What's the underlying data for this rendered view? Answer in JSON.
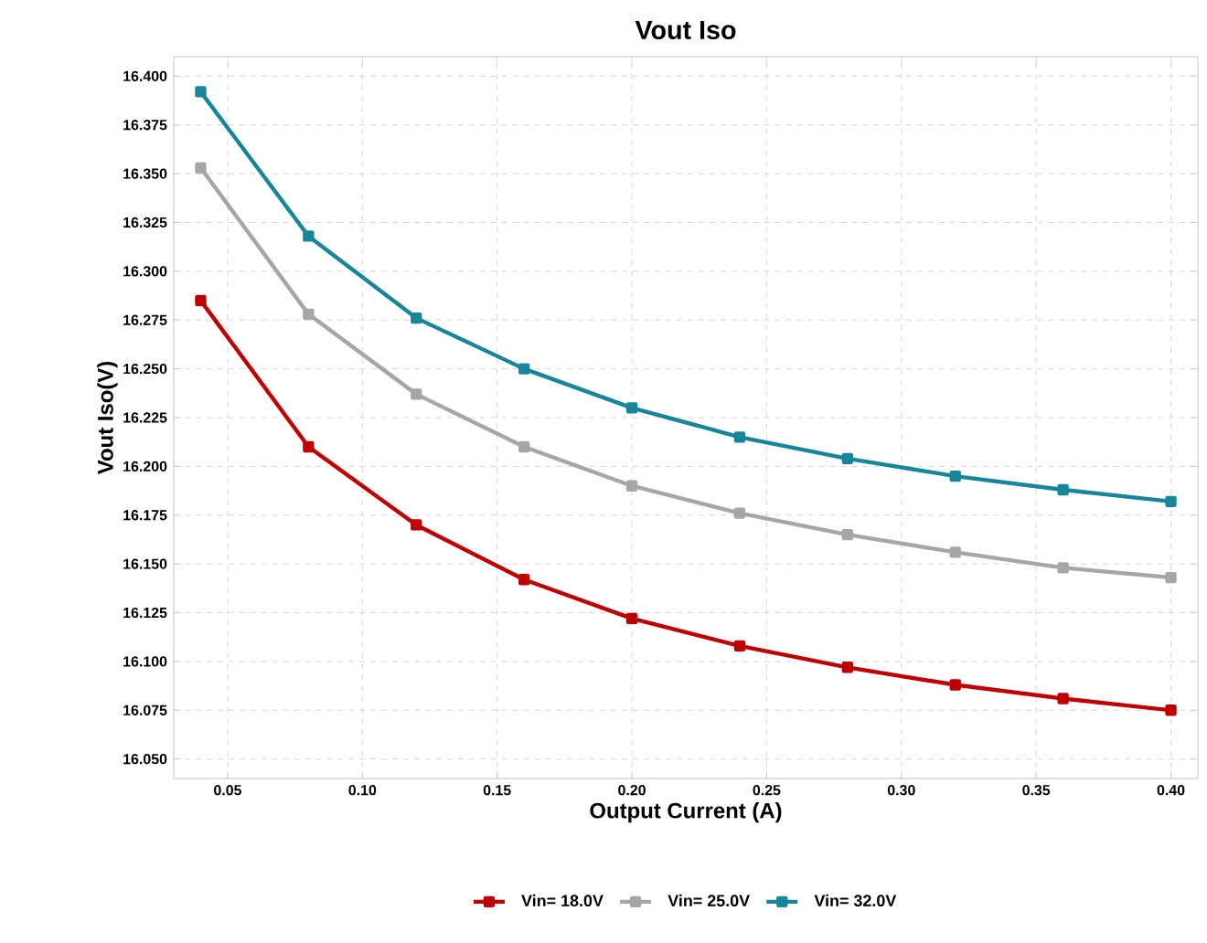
{
  "chart_data": {
    "type": "line",
    "title": "Vout Iso",
    "xlabel": "Output Current (A)",
    "ylabel": "Vout Iso(V)",
    "x": [
      0.04,
      0.08,
      0.12,
      0.16,
      0.2,
      0.24,
      0.28,
      0.32,
      0.36,
      0.4
    ],
    "series": [
      {
        "name": "Vin= 18.0V",
        "color": "#c00000",
        "values": [
          16.285,
          16.21,
          16.17,
          16.142,
          16.122,
          16.108,
          16.097,
          16.088,
          16.081,
          16.075
        ]
      },
      {
        "name": "Vin= 25.0V",
        "color": "#a6a6a6",
        "values": [
          16.353,
          16.278,
          16.237,
          16.21,
          16.19,
          16.176,
          16.165,
          16.156,
          16.148,
          16.143
        ]
      },
      {
        "name": "Vin= 32.0V",
        "color": "#17869a",
        "values": [
          16.392,
          16.318,
          16.276,
          16.25,
          16.23,
          16.215,
          16.204,
          16.195,
          16.188,
          16.182
        ]
      }
    ],
    "xlim": [
      0.03,
      0.41
    ],
    "ylim": [
      16.04,
      16.41
    ],
    "xticks": [
      {
        "value": 0.05,
        "label": "0.05"
      },
      {
        "value": 0.1,
        "label": "0.10"
      },
      {
        "value": 0.15,
        "label": "0.15"
      },
      {
        "value": 0.2,
        "label": "0.20"
      },
      {
        "value": 0.25,
        "label": "0.25"
      },
      {
        "value": 0.3,
        "label": "0.30"
      },
      {
        "value": 0.35,
        "label": "0.35"
      },
      {
        "value": 0.4,
        "label": "0.40"
      }
    ],
    "yticks": [
      {
        "value": 16.05,
        "label": "16.050"
      },
      {
        "value": 16.075,
        "label": "16.075"
      },
      {
        "value": 16.1,
        "label": "16.100"
      },
      {
        "value": 16.125,
        "label": "16.125"
      },
      {
        "value": 16.15,
        "label": "16.150"
      },
      {
        "value": 16.175,
        "label": "16.175"
      },
      {
        "value": 16.2,
        "label": "16.200"
      },
      {
        "value": 16.225,
        "label": "16.225"
      },
      {
        "value": 16.25,
        "label": "16.250"
      },
      {
        "value": 16.275,
        "label": "16.275"
      },
      {
        "value": 16.3,
        "label": "16.300"
      },
      {
        "value": 16.325,
        "label": "16.325"
      },
      {
        "value": 16.35,
        "label": "16.350"
      },
      {
        "value": 16.375,
        "label": "16.375"
      },
      {
        "value": 16.4,
        "label": "16.400"
      }
    ],
    "grid": true,
    "legend": "bottom",
    "marker": "square",
    "line_style": "solid"
  }
}
